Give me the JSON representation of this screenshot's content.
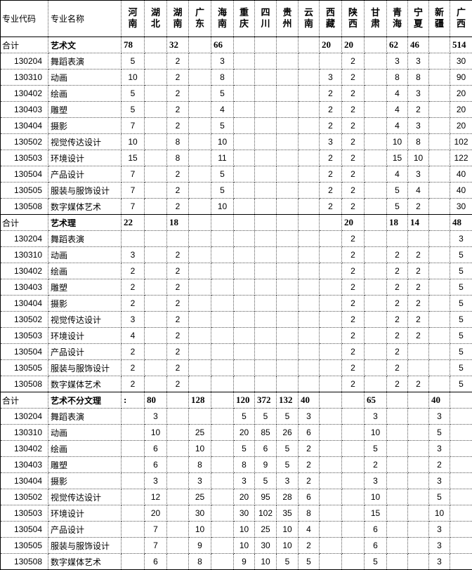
{
  "header": {
    "code_label": "专业代码",
    "name_label": "专业名称",
    "provinces": [
      "河南",
      "湖北",
      "湖南",
      "广东",
      "海南",
      "重庆",
      "四川",
      "贵州",
      "云南",
      "西藏",
      "陕西",
      "甘肃",
      "青海",
      "宁夏",
      "新疆",
      "广西"
    ]
  },
  "sections": [
    {
      "total_label": "合计",
      "category": "艺术文",
      "totals": [
        "78",
        "",
        "32",
        "",
        "66",
        "",
        "",
        "",
        "",
        "20",
        "20",
        "",
        "62",
        "46",
        "",
        "514"
      ],
      "rows": [
        {
          "code": "130204",
          "name": "舞蹈表演",
          "values": [
            "5",
            "",
            "2",
            "",
            "3",
            "",
            "",
            "",
            "",
            "",
            "2",
            "",
            "3",
            "3",
            "",
            "30"
          ]
        },
        {
          "code": "130310",
          "name": "动画",
          "values": [
            "10",
            "",
            "2",
            "",
            "8",
            "",
            "",
            "",
            "",
            "3",
            "2",
            "",
            "8",
            "8",
            "",
            "90"
          ]
        },
        {
          "code": "130402",
          "name": "绘画",
          "values": [
            "5",
            "",
            "2",
            "",
            "5",
            "",
            "",
            "",
            "",
            "2",
            "2",
            "",
            "4",
            "3",
            "",
            "20"
          ]
        },
        {
          "code": "130403",
          "name": "雕塑",
          "values": [
            "5",
            "",
            "2",
            "",
            "4",
            "",
            "",
            "",
            "",
            "2",
            "2",
            "",
            "4",
            "2",
            "",
            "20"
          ]
        },
        {
          "code": "130404",
          "name": "摄影",
          "values": [
            "7",
            "",
            "2",
            "",
            "5",
            "",
            "",
            "",
            "",
            "2",
            "2",
            "",
            "4",
            "3",
            "",
            "20"
          ]
        },
        {
          "code": "130502",
          "name": "视觉传达设计",
          "values": [
            "10",
            "",
            "8",
            "",
            "10",
            "",
            "",
            "",
            "",
            "3",
            "2",
            "",
            "10",
            "8",
            "",
            "102"
          ]
        },
        {
          "code": "130503",
          "name": "环境设计",
          "values": [
            "15",
            "",
            "8",
            "",
            "11",
            "",
            "",
            "",
            "",
            "2",
            "2",
            "",
            "15",
            "10",
            "",
            "122"
          ]
        },
        {
          "code": "130504",
          "name": "产品设计",
          "values": [
            "7",
            "",
            "2",
            "",
            "5",
            "",
            "",
            "",
            "",
            "2",
            "2",
            "",
            "4",
            "3",
            "",
            "40"
          ]
        },
        {
          "code": "130505",
          "name": "服装与服饰设计",
          "values": [
            "7",
            "",
            "2",
            "",
            "5",
            "",
            "",
            "",
            "",
            "2",
            "2",
            "",
            "5",
            "4",
            "",
            "40"
          ]
        },
        {
          "code": "130508",
          "name": "数字媒体艺术",
          "values": [
            "7",
            "",
            "2",
            "",
            "10",
            "",
            "",
            "",
            "",
            "2",
            "2",
            "",
            "5",
            "2",
            "",
            "30"
          ]
        }
      ]
    },
    {
      "total_label": "合计",
      "category": "艺术理",
      "totals": [
        "22",
        "",
        "18",
        "",
        "",
        "",
        "",
        "",
        "",
        "",
        "20",
        "",
        "18",
        "14",
        "",
        "48"
      ],
      "rows": [
        {
          "code": "130204",
          "name": "舞蹈表演",
          "values": [
            "",
            "",
            "",
            "",
            "",
            "",
            "",
            "",
            "",
            "",
            "2",
            "",
            "",
            "",
            "",
            "3"
          ]
        },
        {
          "code": "130310",
          "name": "动画",
          "values": [
            "3",
            "",
            "2",
            "",
            "",
            "",
            "",
            "",
            "",
            "",
            "2",
            "",
            "2",
            "2",
            "",
            "5"
          ]
        },
        {
          "code": "130402",
          "name": "绘画",
          "values": [
            "2",
            "",
            "2",
            "",
            "",
            "",
            "",
            "",
            "",
            "",
            "2",
            "",
            "2",
            "2",
            "",
            "5"
          ]
        },
        {
          "code": "130403",
          "name": "雕塑",
          "values": [
            "2",
            "",
            "2",
            "",
            "",
            "",
            "",
            "",
            "",
            "",
            "2",
            "",
            "2",
            "2",
            "",
            "5"
          ]
        },
        {
          "code": "130404",
          "name": "摄影",
          "values": [
            "2",
            "",
            "2",
            "",
            "",
            "",
            "",
            "",
            "",
            "",
            "2",
            "",
            "2",
            "2",
            "",
            "5"
          ]
        },
        {
          "code": "130502",
          "name": "视觉传达设计",
          "values": [
            "3",
            "",
            "2",
            "",
            "",
            "",
            "",
            "",
            "",
            "",
            "2",
            "",
            "2",
            "2",
            "",
            "5"
          ]
        },
        {
          "code": "130503",
          "name": "环境设计",
          "values": [
            "4",
            "",
            "2",
            "",
            "",
            "",
            "",
            "",
            "",
            "",
            "2",
            "",
            "2",
            "2",
            "",
            "5"
          ]
        },
        {
          "code": "130504",
          "name": "产品设计",
          "values": [
            "2",
            "",
            "2",
            "",
            "",
            "",
            "",
            "",
            "",
            "",
            "2",
            "",
            "2",
            "",
            "",
            "5"
          ]
        },
        {
          "code": "130505",
          "name": "服装与服饰设计",
          "values": [
            "2",
            "",
            "2",
            "",
            "",
            "",
            "",
            "",
            "",
            "",
            "2",
            "",
            "2",
            "",
            "",
            "5"
          ]
        },
        {
          "code": "130508",
          "name": "数字媒体艺术",
          "values": [
            "2",
            "",
            "2",
            "",
            "",
            "",
            "",
            "",
            "",
            "",
            "2",
            "",
            "2",
            "2",
            "",
            "5"
          ]
        }
      ]
    },
    {
      "total_label": "合计",
      "category": "艺术不分文理",
      "totals": [
        ":",
        "80",
        "",
        "128",
        "",
        "120",
        "372",
        "132",
        "40",
        "",
        "",
        "65",
        "",
        "",
        "40",
        ""
      ],
      "rows": [
        {
          "code": "130204",
          "name": "舞蹈表演",
          "values": [
            "",
            "3",
            "",
            "",
            "",
            "5",
            "5",
            "5",
            "3",
            "",
            "",
            "3",
            "",
            "",
            "3",
            ""
          ]
        },
        {
          "code": "130310",
          "name": "动画",
          "values": [
            "",
            "10",
            "",
            "25",
            "",
            "20",
            "85",
            "26",
            "6",
            "",
            "",
            "10",
            "",
            "",
            "5",
            ""
          ]
        },
        {
          "code": "130402",
          "name": "绘画",
          "values": [
            "",
            "6",
            "",
            "10",
            "",
            "5",
            "6",
            "5",
            "2",
            "",
            "",
            "5",
            "",
            "",
            "3",
            ""
          ]
        },
        {
          "code": "130403",
          "name": "雕塑",
          "values": [
            "",
            "6",
            "",
            "8",
            "",
            "8",
            "9",
            "5",
            "2",
            "",
            "",
            "2",
            "",
            "",
            "2",
            ""
          ]
        },
        {
          "code": "130404",
          "name": "摄影",
          "values": [
            "",
            "3",
            "",
            "3",
            "",
            "3",
            "5",
            "3",
            "2",
            "",
            "",
            "3",
            "",
            "",
            "3",
            ""
          ]
        },
        {
          "code": "130502",
          "name": "视觉传达设计",
          "values": [
            "",
            "12",
            "",
            "25",
            "",
            "20",
            "95",
            "28",
            "6",
            "",
            "",
            "10",
            "",
            "",
            "5",
            ""
          ]
        },
        {
          "code": "130503",
          "name": "环境设计",
          "values": [
            "",
            "20",
            "",
            "30",
            "",
            "30",
            "102",
            "35",
            "8",
            "",
            "",
            "15",
            "",
            "",
            "10",
            ""
          ]
        },
        {
          "code": "130504",
          "name": "产品设计",
          "values": [
            "",
            "7",
            "",
            "10",
            "",
            "10",
            "25",
            "10",
            "4",
            "",
            "",
            "6",
            "",
            "",
            "3",
            ""
          ]
        },
        {
          "code": "130505",
          "name": "服装与服饰设计",
          "values": [
            "",
            "7",
            "",
            "9",
            "",
            "10",
            "30",
            "10",
            "2",
            "",
            "",
            "6",
            "",
            "",
            "3",
            ""
          ]
        },
        {
          "code": "130508",
          "name": "数字媒体艺术",
          "values": [
            "",
            "6",
            "",
            "8",
            "",
            "9",
            "10",
            "5",
            "5",
            "",
            "",
            "5",
            "",
            "",
            "3",
            ""
          ]
        }
      ]
    }
  ]
}
